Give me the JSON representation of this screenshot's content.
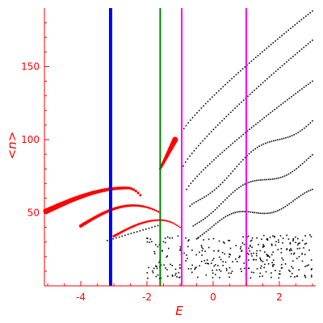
{
  "chart_data": {
    "type": "scatter",
    "title": "",
    "xlabel": "E",
    "ylabel": "<n>",
    "xlim": [
      -5.1,
      3.1
    ],
    "ylim": [
      0,
      190
    ],
    "x_ticks": [
      -4,
      -2,
      0,
      2
    ],
    "x_tick_labels": [
      "-4",
      "-2",
      "0",
      "2"
    ],
    "y_ticks": [
      50,
      100,
      150
    ],
    "y_tick_labels": [
      "50",
      "100",
      "150"
    ],
    "grid": false,
    "legend": "none",
    "colors": {
      "axis": "#ff0000",
      "red_points": "#ff0000",
      "black_points": "#000000",
      "blue_line": "#0000ff",
      "green_line": "#008000",
      "magenta_line": "#ff00ff"
    },
    "vertical_lines": [
      {
        "x": -3.1,
        "color": "#0000ff",
        "width": "thick"
      },
      {
        "x": -1.6,
        "color": "#008000",
        "width": "normal"
      },
      {
        "x": -0.95,
        "color": "#ff00ff",
        "width": "normal"
      },
      {
        "x": 1.0,
        "color": "#ff00ff",
        "width": "normal"
      }
    ],
    "red_branches": [
      {
        "x_start": -5.05,
        "x_end": -2.2,
        "peak_x": -2.6,
        "peak_y": 67,
        "start_y": 51,
        "end_y": 62,
        "size": "large"
      },
      {
        "x_start": -4.0,
        "x_end": -1.6,
        "peak_x": -2.4,
        "peak_y": 55,
        "start_y": 41,
        "end_y": 50,
        "size": "medium"
      },
      {
        "x_start": -3.0,
        "x_end": -1.0,
        "peak_x": -1.6,
        "peak_y": 45,
        "start_y": 34,
        "end_y": 40,
        "size": "small"
      },
      {
        "x_start": -1.6,
        "x_end": -1.15,
        "peak_x": -1.15,
        "peak_y": 100,
        "start_y": 80,
        "end_y": 100,
        "size": "large"
      }
    ],
    "black_families": [
      {
        "x_start": -0.95,
        "x_end": 3.0,
        "y_start": 105,
        "y_end": 188
      },
      {
        "x_start": -0.9,
        "x_end": 3.0,
        "y_start": 82,
        "y_end": 168
      },
      {
        "x_start": -0.8,
        "x_end": 3.0,
        "y_start": 66,
        "y_end": 140
      },
      {
        "x_start": -0.7,
        "x_end": 3.0,
        "y_start": 54,
        "y_end": 115
      },
      {
        "x_start": -0.6,
        "x_end": 3.0,
        "y_start": 44,
        "y_end": 88
      },
      {
        "x_start": -0.5,
        "x_end": 3.0,
        "y_start": 36,
        "y_end": 62
      }
    ],
    "black_scatter_region": {
      "x_range": [
        -2.0,
        3.0
      ],
      "y_range": [
        5,
        35
      ]
    }
  }
}
